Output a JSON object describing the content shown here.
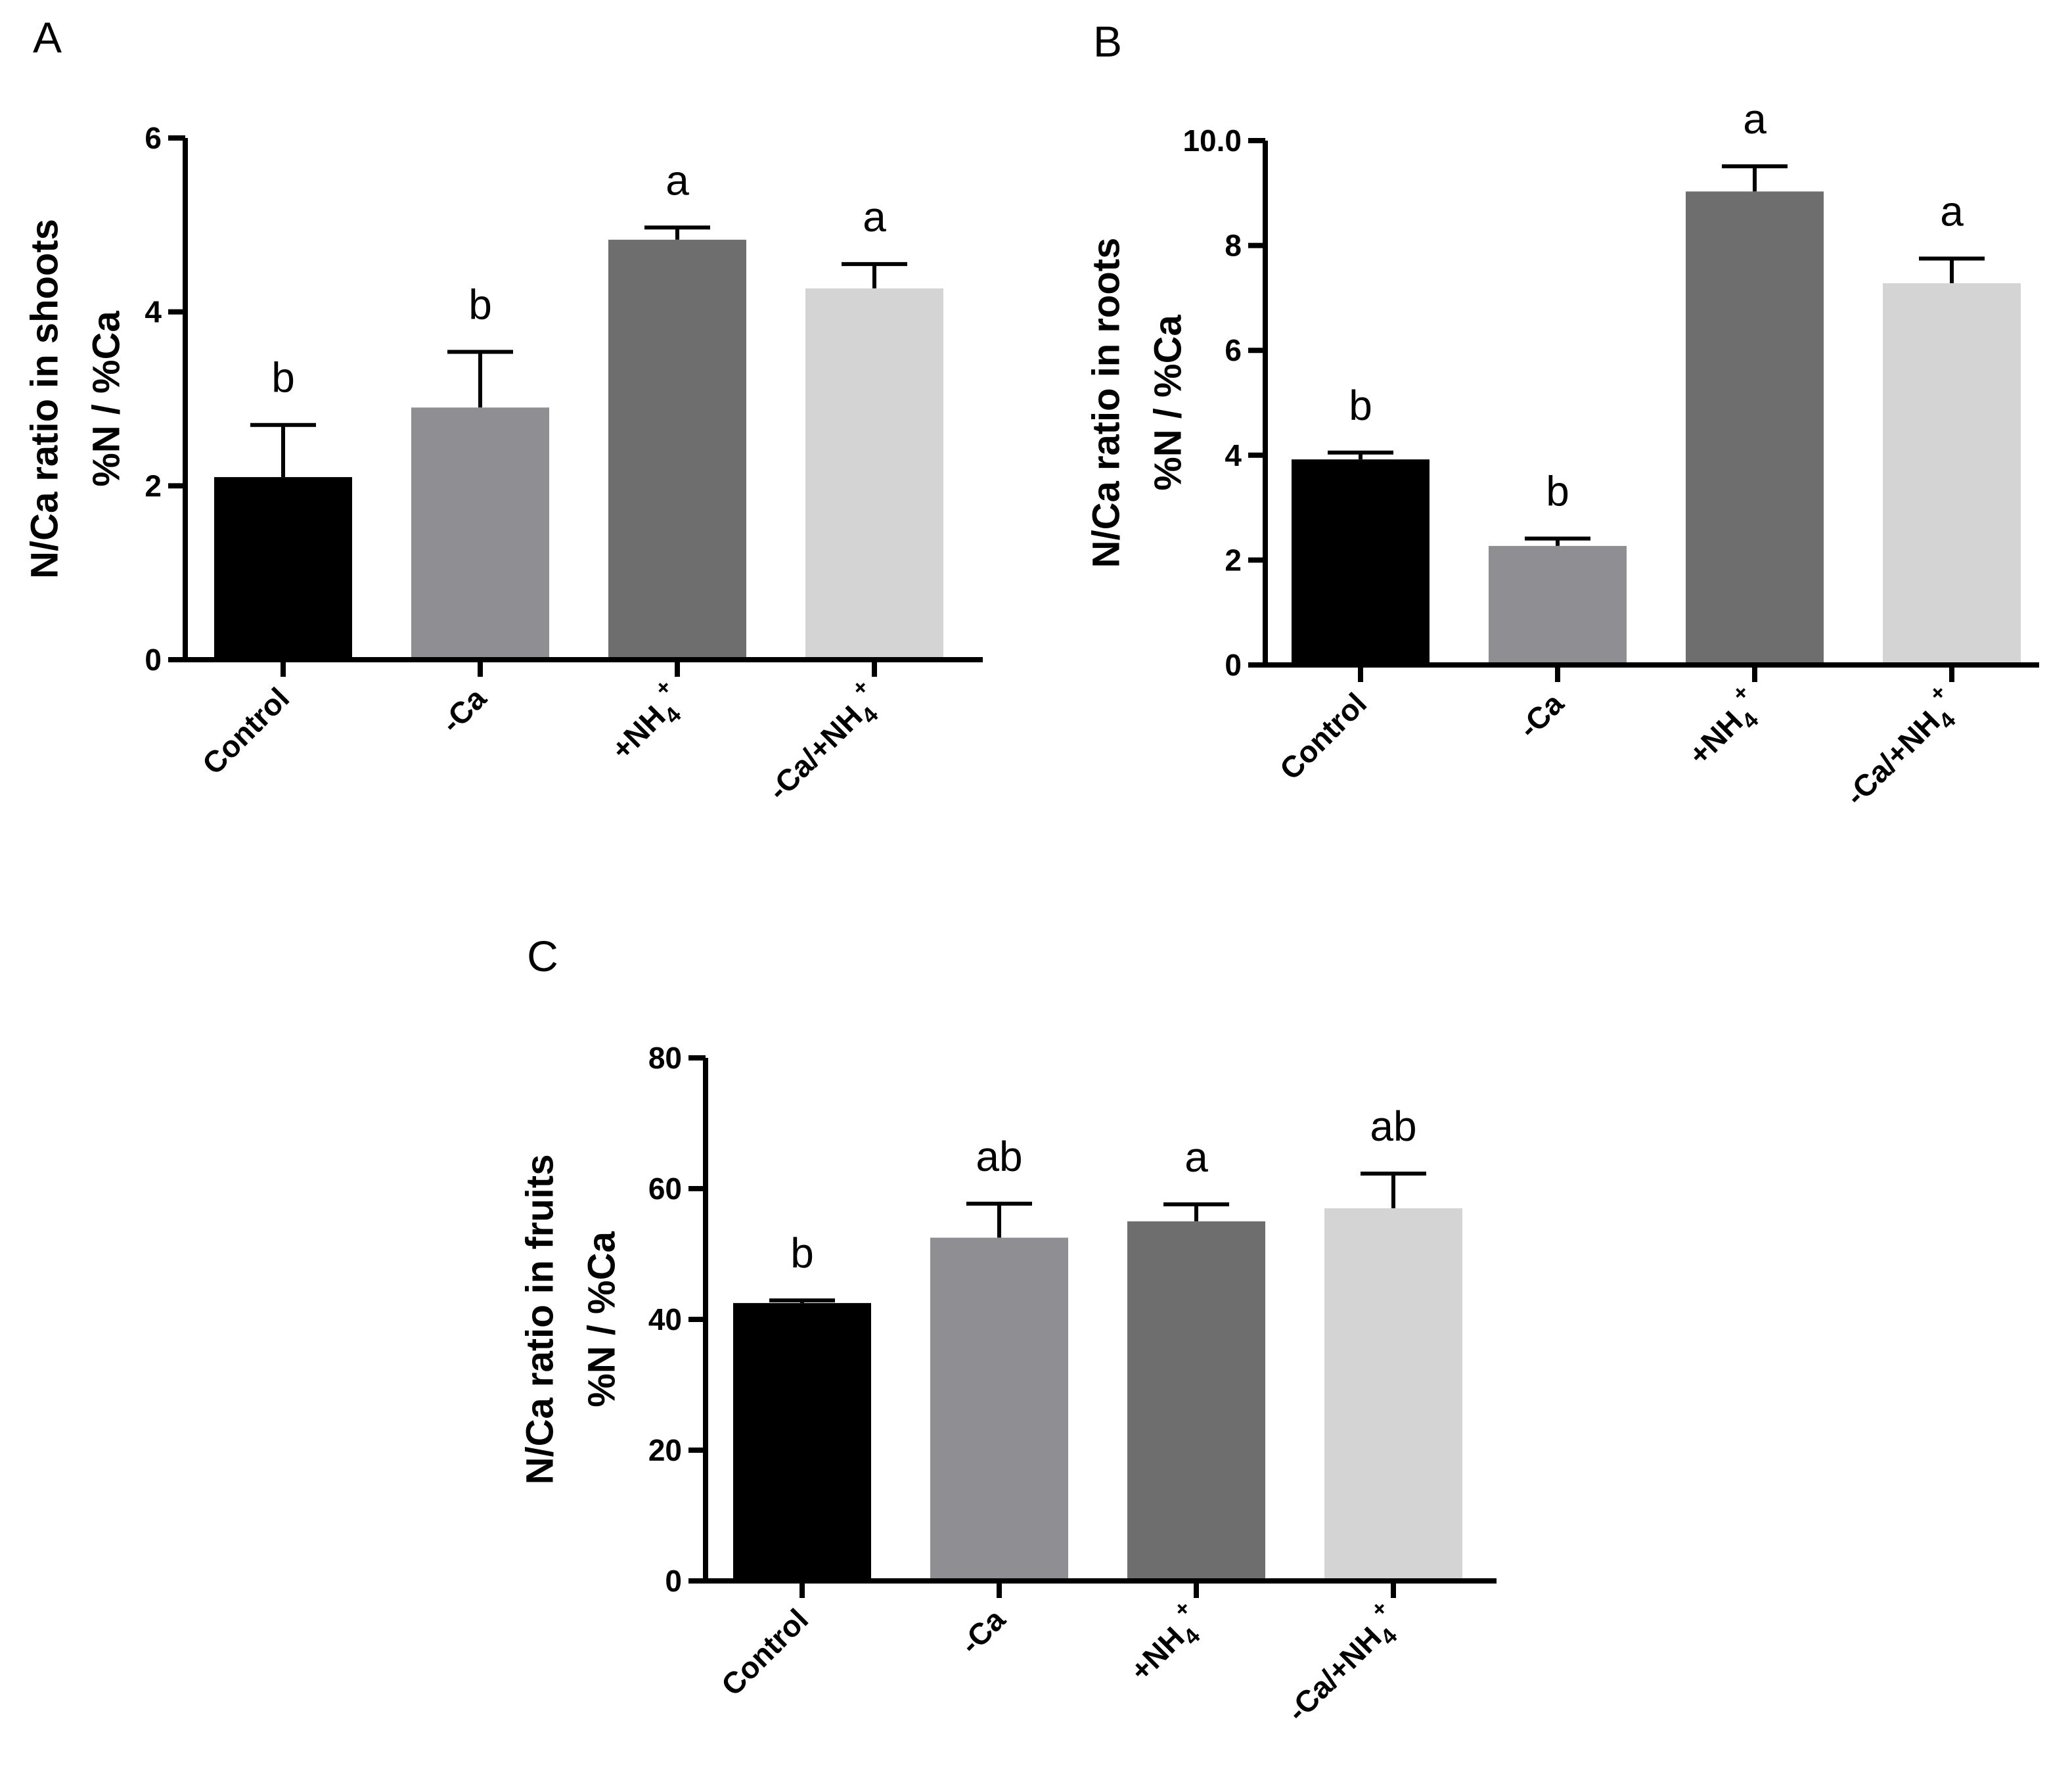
{
  "chart_data": [
    {
      "panel": "A",
      "type": "bar",
      "title": "",
      "xlabel": "",
      "ylabel": [
        "N/Ca ratio in shoots",
        "%N / %Ca"
      ],
      "categories": [
        {
          "base": "Control",
          "sub": "",
          "sup": ""
        },
        {
          "base": "-Ca",
          "sub": "",
          "sup": ""
        },
        {
          "base": "+NH",
          "sub": "4",
          "sup": "+"
        },
        {
          "base": "-Ca/+NH",
          "sub": "4",
          "sup": "+"
        }
      ],
      "values": [
        2.1,
        2.9,
        4.83,
        4.27
      ],
      "errors": [
        0.6,
        0.64,
        0.14,
        0.28
      ],
      "significance": [
        "b",
        "b",
        "a",
        "a"
      ],
      "colors": [
        "#000000",
        "#8e8e93",
        "#6e6e6e",
        "#d4d4d4"
      ],
      "ylim": [
        0,
        6
      ],
      "yticks": [
        0,
        2,
        4,
        6
      ],
      "grid": false
    },
    {
      "panel": "B",
      "type": "bar",
      "title": "",
      "xlabel": "",
      "ylabel": [
        "N/Ca ratio in roots",
        "%N / %Ca"
      ],
      "categories": [
        {
          "base": "Control",
          "sub": "",
          "sup": ""
        },
        {
          "base": "-Ca",
          "sub": "",
          "sup": ""
        },
        {
          "base": "+NH",
          "sub": "4",
          "sup": "+"
        },
        {
          "base": "-Ca/+NH",
          "sub": "4",
          "sup": "+"
        }
      ],
      "values": [
        3.92,
        2.27,
        9.03,
        7.28
      ],
      "errors": [
        0.13,
        0.14,
        0.48,
        0.47
      ],
      "significance": [
        "b",
        "b",
        "a",
        "a"
      ],
      "colors": [
        "#000000",
        "#8e8e93",
        "#6e6e6e",
        "#d4d4d4"
      ],
      "ylim": [
        0,
        10
      ],
      "yticks": [
        0,
        2,
        4,
        6,
        8,
        10
      ],
      "ytick_labels": [
        "0",
        "2",
        "4",
        "6",
        "8",
        "10.0"
      ],
      "grid": false
    },
    {
      "panel": "C",
      "type": "bar",
      "title": "",
      "xlabel": "",
      "ylabel": [
        "N/Ca ratio in fruits",
        "%N / %Ca"
      ],
      "categories": [
        {
          "base": "Control",
          "sub": "",
          "sup": ""
        },
        {
          "base": "-Ca",
          "sub": "",
          "sup": ""
        },
        {
          "base": "+NH",
          "sub": "4",
          "sup": "+"
        },
        {
          "base": "-Ca/+NH",
          "sub": "4",
          "sup": "+"
        }
      ],
      "values": [
        42.5,
        52.5,
        55.0,
        57.0
      ],
      "errors": [
        0.4,
        5.2,
        2.6,
        5.3
      ],
      "significance": [
        "b",
        "ab",
        "a",
        "ab"
      ],
      "colors": [
        "#000000",
        "#8e8e93",
        "#6e6e6e",
        "#d4d4d4"
      ],
      "ylim": [
        0,
        80
      ],
      "yticks": [
        0,
        20,
        40,
        60,
        80
      ],
      "grid": false
    }
  ]
}
